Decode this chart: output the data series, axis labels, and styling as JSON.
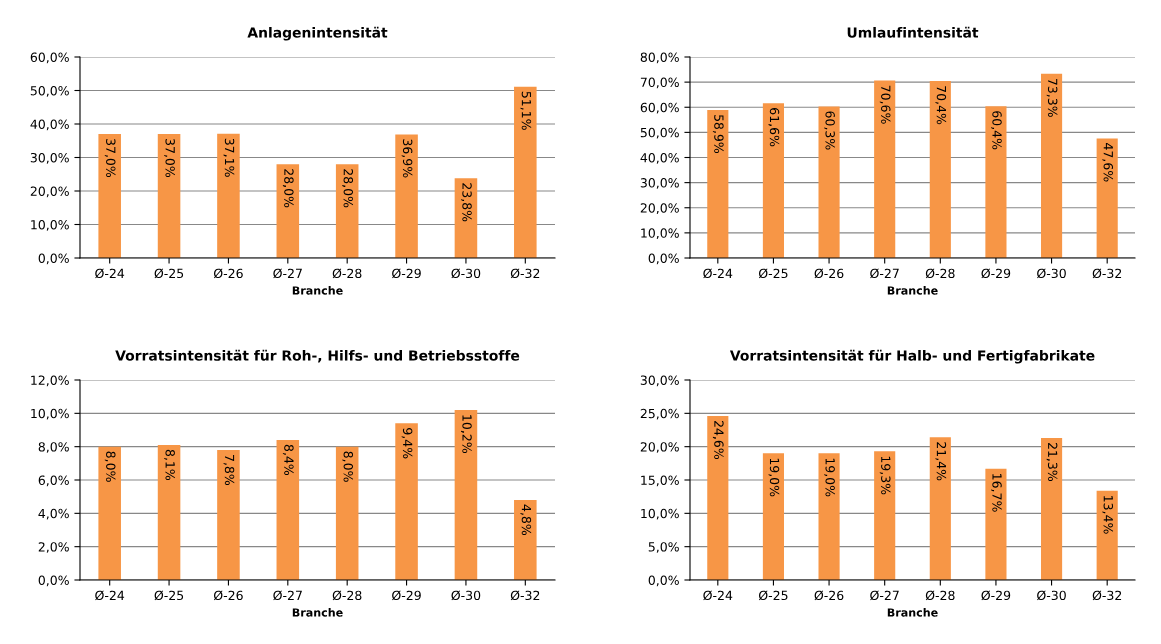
{
  "chart_data": [
    {
      "type": "bar",
      "title": "Anlagenintensität",
      "xlabel": "Branche",
      "categories": [
        "Ø-24",
        "Ø-25",
        "Ø-26",
        "Ø-27",
        "Ø-28",
        "Ø-29",
        "Ø-30",
        "Ø-32"
      ],
      "values": [
        37.0,
        37.0,
        37.1,
        28.0,
        28.0,
        36.9,
        23.8,
        51.1
      ],
      "value_labels": [
        "37,0%",
        "37,0%",
        "37,1%",
        "28,0%",
        "28,0%",
        "36,9%",
        "23,8%",
        "51,1%"
      ],
      "color": "#f79646",
      "ylim": [
        0,
        60
      ],
      "yticks": [
        {
          "value": 0,
          "label": "0,0%"
        },
        {
          "value": 10,
          "label": "10,0%"
        },
        {
          "value": 20,
          "label": "20,0%"
        },
        {
          "value": 30,
          "label": "30,0%"
        },
        {
          "value": 40,
          "label": "40,0%"
        },
        {
          "value": 50,
          "label": "50,0%"
        },
        {
          "value": 60,
          "label": "60,0%"
        }
      ],
      "grid": "y"
    },
    {
      "type": "bar",
      "title": "Umlaufintensität",
      "xlabel": "Branche",
      "categories": [
        "Ø-24",
        "Ø-25",
        "Ø-26",
        "Ø-27",
        "Ø-28",
        "Ø-29",
        "Ø-30",
        "Ø-32"
      ],
      "values": [
        58.9,
        61.6,
        60.3,
        70.6,
        70.4,
        60.4,
        73.3,
        47.6
      ],
      "value_labels": [
        "58,9%",
        "61,6%",
        "60,3%",
        "70,6%",
        "70,4%",
        "60,4%",
        "73,3%",
        "47,6%"
      ],
      "color": "#f79646",
      "ylim": [
        0,
        80
      ],
      "yticks": [
        {
          "value": 0,
          "label": "0,0%"
        },
        {
          "value": 10,
          "label": "10,0%"
        },
        {
          "value": 20,
          "label": "20,0%"
        },
        {
          "value": 30,
          "label": "30,0%"
        },
        {
          "value": 40,
          "label": "40,0%"
        },
        {
          "value": 50,
          "label": "50,0%"
        },
        {
          "value": 60,
          "label": "60,0%"
        },
        {
          "value": 70,
          "label": "70,0%"
        },
        {
          "value": 80,
          "label": "80,0%"
        }
      ],
      "grid": "y"
    },
    {
      "type": "bar",
      "title": "Vorratsintensität für Roh-, Hilfs- und Betriebsstoffe",
      "xlabel": "Branche",
      "categories": [
        "Ø-24",
        "Ø-25",
        "Ø-26",
        "Ø-27",
        "Ø-28",
        "Ø-29",
        "Ø-30",
        "Ø-32"
      ],
      "values": [
        8.0,
        8.1,
        7.8,
        8.4,
        8.0,
        9.4,
        10.2,
        4.8
      ],
      "value_labels": [
        "8,0%",
        "8,1%",
        "7,8%",
        "8,4%",
        "8,0%",
        "9,4%",
        "10,2%",
        "4,8%"
      ],
      "color": "#f79646",
      "ylim": [
        0,
        12
      ],
      "yticks": [
        {
          "value": 0,
          "label": "0,0%"
        },
        {
          "value": 2,
          "label": "2,0%"
        },
        {
          "value": 4,
          "label": "4,0%"
        },
        {
          "value": 6,
          "label": "6,0%"
        },
        {
          "value": 8,
          "label": "8,0%"
        },
        {
          "value": 10,
          "label": "10,0%"
        },
        {
          "value": 12,
          "label": "12,0%"
        }
      ],
      "grid": "y"
    },
    {
      "type": "bar",
      "title": "Vorratsintensität für Halb- und Fertigfabrikate",
      "xlabel": "Branche",
      "categories": [
        "Ø-24",
        "Ø-25",
        "Ø-26",
        "Ø-27",
        "Ø-28",
        "Ø-29",
        "Ø-30",
        "Ø-32"
      ],
      "values": [
        24.6,
        19.0,
        19.0,
        19.3,
        21.4,
        16.7,
        21.3,
        13.4
      ],
      "value_labels": [
        "24,6%",
        "19,0%",
        "19,0%",
        "19,3%",
        "21,4%",
        "16,7%",
        "21,3%",
        "13,4%"
      ],
      "color": "#f79646",
      "ylim": [
        0,
        30
      ],
      "yticks": [
        {
          "value": 0,
          "label": "0,0%"
        },
        {
          "value": 5,
          "label": "5,0%"
        },
        {
          "value": 10,
          "label": "10,0%"
        },
        {
          "value": 15,
          "label": "15,0%"
        },
        {
          "value": 20,
          "label": "20,0%"
        },
        {
          "value": 25,
          "label": "25,0%"
        },
        {
          "value": 30,
          "label": "30,0%"
        }
      ],
      "grid": "y"
    }
  ]
}
